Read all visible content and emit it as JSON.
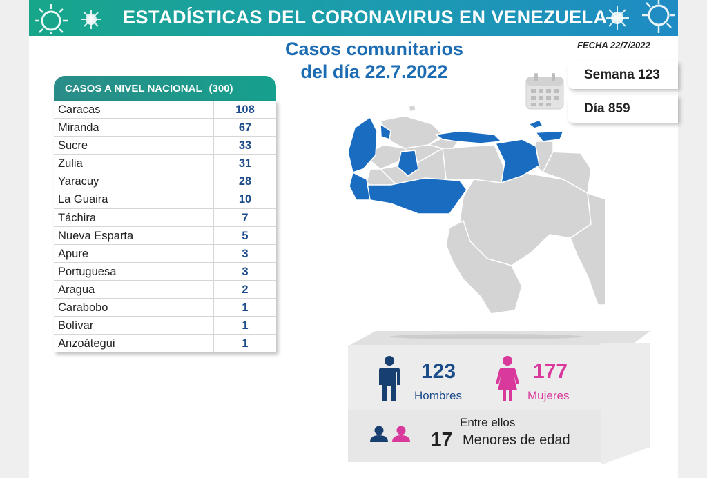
{
  "header": {
    "title": "ESTADÍSTICAS DEL CORONAVIRUS EN VENEZUELA",
    "date": "FECHA 22/7/2022"
  },
  "headline": {
    "line1": "Casos comunitarios",
    "line2": "del día 22.7.2022"
  },
  "badges": {
    "week": "Semana 123",
    "day": "Día 859"
  },
  "table": {
    "title": "CASOS A NIVEL NACIONAL",
    "total": "(300)",
    "rows": [
      {
        "state": "Caracas",
        "cases": "108"
      },
      {
        "state": "Miranda",
        "cases": "67"
      },
      {
        "state": "Sucre",
        "cases": "33"
      },
      {
        "state": "Zulia",
        "cases": "31"
      },
      {
        "state": "Yaracuy",
        "cases": "28"
      },
      {
        "state": "La Guaira",
        "cases": "10"
      },
      {
        "state": "Táchira",
        "cases": "7"
      },
      {
        "state": "Nueva Esparta",
        "cases": "5"
      },
      {
        "state": "Apure",
        "cases": "3"
      },
      {
        "state": "Portuguesa",
        "cases": "3"
      },
      {
        "state": "Aragua",
        "cases": "2"
      },
      {
        "state": "Carabobo",
        "cases": "1"
      },
      {
        "state": "Bolívar",
        "cases": "1"
      },
      {
        "state": "Anzoátegui",
        "cases": "1"
      }
    ]
  },
  "gender": {
    "men_count": "123",
    "men_label": "Hombres",
    "women_count": "177",
    "women_label": "Mujeres",
    "minors_intro": "Entre ellos",
    "minors_count": "17",
    "minors_label": "Menores de edad"
  },
  "colors": {
    "men": "#1c4b8a",
    "women": "#d9399b",
    "map_highlight": "#1a6cc0",
    "map_base": "#d4d4d4",
    "banner": "#1ba08f"
  }
}
